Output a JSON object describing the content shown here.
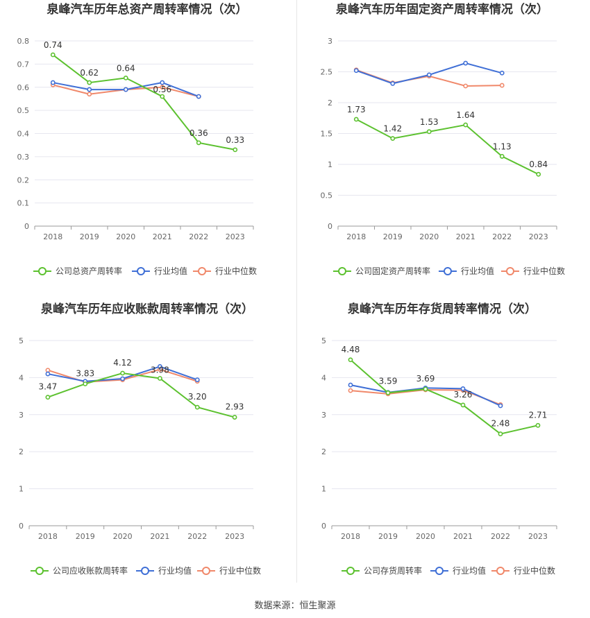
{
  "source_text": "数据来源：恒生聚源",
  "colors": {
    "company": "#5cc12f",
    "avg": "#3f6fd6",
    "median": "#f0886a",
    "grid": "#e6e6ef",
    "axis_text": "#666666",
    "title": "#333333"
  },
  "chart_data": [
    {
      "type": "line",
      "title": "泉峰汽车历年总资产周转率情况（次）",
      "categories": [
        "2018",
        "2019",
        "2020",
        "2021",
        "2022",
        "2023"
      ],
      "ylim": [
        0,
        0.8
      ],
      "yticks": [
        0,
        0.1,
        0.2,
        0.3,
        0.4,
        0.5,
        0.6,
        0.7,
        0.8
      ],
      "ytick_labels": [
        "0",
        "0.1",
        "0.2",
        "0.3",
        "0.4",
        "0.5",
        "0.6",
        "0.7",
        "0.8"
      ],
      "legend": "bottom",
      "grid": true,
      "series": [
        {
          "name": "公司总资产周转率",
          "role": "company",
          "values": [
            0.74,
            0.62,
            0.64,
            0.56,
            0.36,
            0.33
          ],
          "labels": [
            "0.74",
            "0.62",
            "0.64",
            "0.56",
            "0.36",
            "0.33"
          ]
        },
        {
          "name": "行业均值",
          "role": "avg",
          "values": [
            0.62,
            0.59,
            0.59,
            0.62,
            0.56,
            null
          ]
        },
        {
          "name": "行业中位数",
          "role": "median",
          "values": [
            0.61,
            0.57,
            0.59,
            0.6,
            0.56,
            null
          ]
        }
      ]
    },
    {
      "type": "line",
      "title": "泉峰汽车历年固定资产周转率情况（次）",
      "categories": [
        "2018",
        "2019",
        "2020",
        "2021",
        "2022",
        "2023"
      ],
      "ylim": [
        0,
        3
      ],
      "yticks": [
        0,
        0.5,
        1,
        1.5,
        2,
        2.5,
        3
      ],
      "ytick_labels": [
        "0",
        "0.5",
        "1",
        "1.5",
        "2",
        "2.5",
        "3"
      ],
      "legend": "bottom",
      "grid": true,
      "series": [
        {
          "name": "公司固定资产周转率",
          "role": "company",
          "values": [
            1.73,
            1.42,
            1.53,
            1.64,
            1.13,
            0.84
          ],
          "labels": [
            "1.73",
            "1.42",
            "1.53",
            "1.64",
            "1.13",
            "0.84"
          ]
        },
        {
          "name": "行业均值",
          "role": "avg",
          "values": [
            2.52,
            2.31,
            2.45,
            2.64,
            2.48,
            null
          ]
        },
        {
          "name": "行业中位数",
          "role": "median",
          "values": [
            2.53,
            2.32,
            2.43,
            2.27,
            2.28,
            null
          ]
        }
      ]
    },
    {
      "type": "line",
      "title": "泉峰汽车历年应收账款周转率情况（次）",
      "categories": [
        "2018",
        "2019",
        "2020",
        "2021",
        "2022",
        "2023"
      ],
      "ylim": [
        0,
        5
      ],
      "yticks": [
        0,
        1,
        2,
        3,
        4,
        5
      ],
      "ytick_labels": [
        "0",
        "1",
        "2",
        "3",
        "4",
        "5"
      ],
      "legend": "bottom",
      "grid": true,
      "series": [
        {
          "name": "公司应收账款周转率",
          "role": "company",
          "values": [
            3.47,
            3.83,
            4.12,
            3.98,
            3.2,
            2.93
          ],
          "labels": [
            "3.47",
            "3.83",
            "4.12",
            "3.98",
            "3.20",
            "2.93"
          ]
        },
        {
          "name": "行业均值",
          "role": "avg",
          "values": [
            4.1,
            3.9,
            3.97,
            4.3,
            3.94,
            null
          ]
        },
        {
          "name": "行业中位数",
          "role": "median",
          "values": [
            4.2,
            3.88,
            3.94,
            4.22,
            3.9,
            null
          ]
        }
      ]
    },
    {
      "type": "line",
      "title": "泉峰汽车历年存货周转率情况（次）",
      "categories": [
        "2018",
        "2019",
        "2020",
        "2021",
        "2022",
        "2023"
      ],
      "ylim": [
        0,
        5
      ],
      "yticks": [
        0,
        1,
        2,
        3,
        4,
        5
      ],
      "ytick_labels": [
        "0",
        "1",
        "2",
        "3",
        "4",
        "5"
      ],
      "legend": "bottom",
      "grid": true,
      "series": [
        {
          "name": "公司存货周转率",
          "role": "company",
          "values": [
            4.48,
            3.59,
            3.69,
            3.26,
            2.48,
            2.71
          ],
          "labels": [
            "4.48",
            "3.59",
            "3.69",
            "3.26",
            "2.48",
            "2.71"
          ]
        },
        {
          "name": "行业均值",
          "role": "avg",
          "values": [
            3.8,
            3.6,
            3.72,
            3.7,
            3.24,
            null
          ]
        },
        {
          "name": "行业中位数",
          "role": "median",
          "values": [
            3.65,
            3.56,
            3.67,
            3.66,
            3.27,
            null
          ]
        }
      ]
    }
  ]
}
